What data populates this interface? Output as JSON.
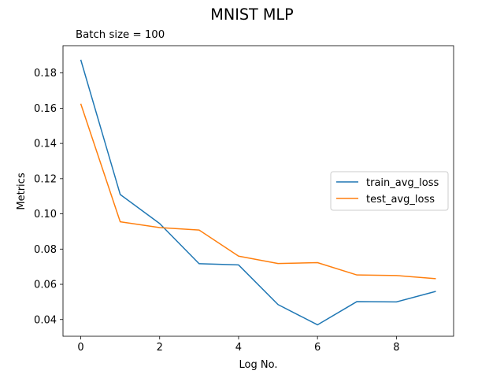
{
  "chart_data": {
    "type": "line",
    "title": "MNIST MLP",
    "subtitle": "Batch size = 100",
    "xlabel": "Log No.",
    "ylabel": "Metrics",
    "x": [
      0,
      1,
      2,
      3,
      4,
      5,
      6,
      7,
      8,
      9
    ],
    "xlim": [
      -0.45,
      9.45
    ],
    "ylim": [
      0.0305,
      0.1955
    ],
    "xticks": [
      0,
      2,
      4,
      6,
      8
    ],
    "xtick_labels": [
      "0",
      "2",
      "4",
      "6",
      "8"
    ],
    "yticks": [
      0.04,
      0.06,
      0.08,
      0.1,
      0.12,
      0.14,
      0.16,
      0.18
    ],
    "ytick_labels": [
      "0.04",
      "0.06",
      "0.08",
      "0.10",
      "0.12",
      "0.14",
      "0.16",
      "0.18"
    ],
    "grid": false,
    "legend_position": "center-right",
    "series": [
      {
        "name": "train_avg_loss",
        "color": "#1f77b4",
        "values": [
          0.1875,
          0.111,
          0.0945,
          0.0717,
          0.071,
          0.0485,
          0.037,
          0.0502,
          0.05,
          0.056
        ]
      },
      {
        "name": "test_avg_loss",
        "color": "#ff7f0e",
        "values": [
          0.1625,
          0.0955,
          0.0922,
          0.0908,
          0.076,
          0.0718,
          0.0723,
          0.0653,
          0.065,
          0.0632
        ]
      }
    ]
  }
}
